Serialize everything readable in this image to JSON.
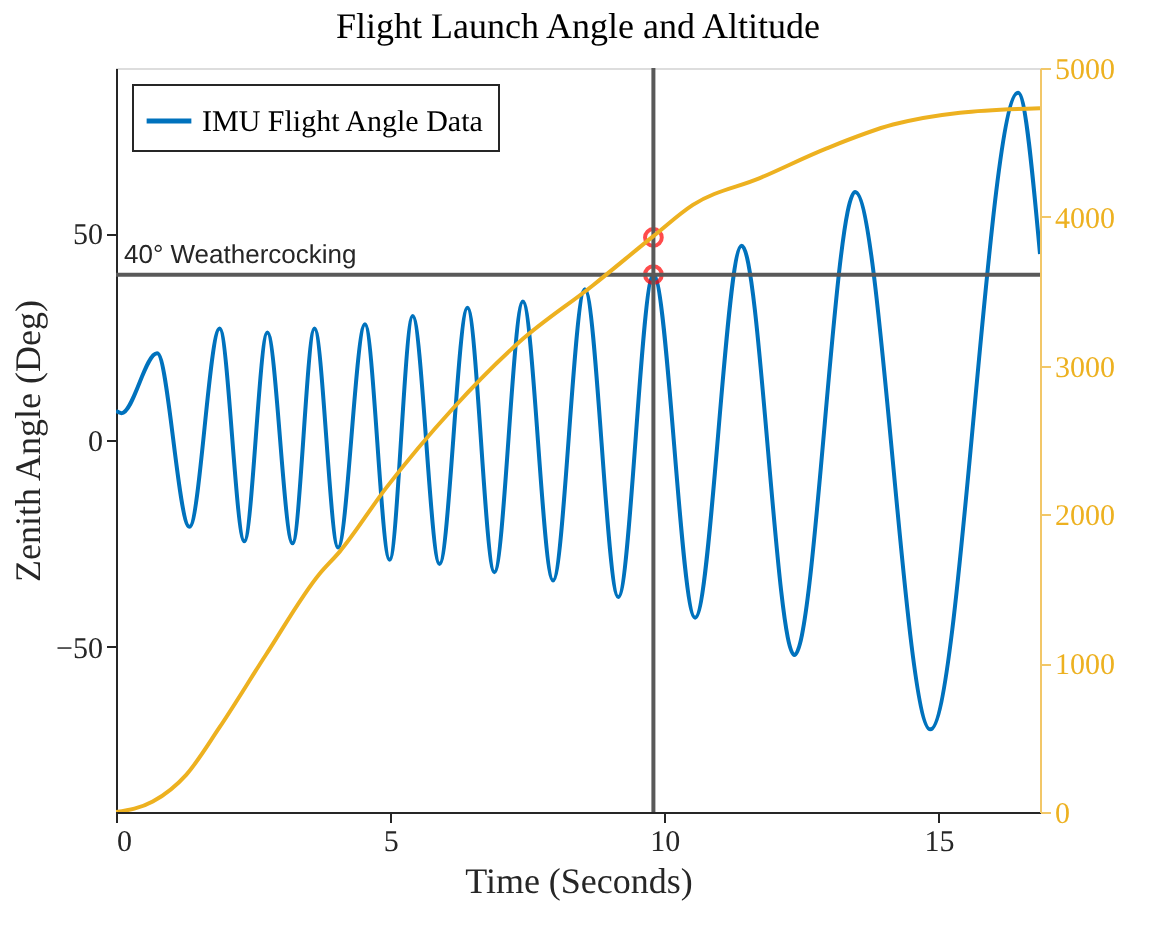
{
  "chart_data": {
    "type": "line",
    "title": "Flight Launch Angle and Altitude",
    "xlabel": "Time (Seconds)",
    "ylabel": "Zenith Angle (Deg)",
    "xlim": [
      0,
      16.85
    ],
    "xticks": [
      0,
      5,
      10,
      15
    ],
    "ylim": [
      -90,
      90
    ],
    "yticks": [
      -50,
      0,
      50
    ],
    "y2lim": [
      0,
      5000
    ],
    "y2ticks": [
      0,
      1000,
      2000,
      3000,
      4000,
      5000
    ],
    "legend": "top left",
    "line_style": "solid",
    "series": [
      {
        "name": "IMU Flight Angle Data",
        "color": "#0072bd",
        "x": [
          0,
          0.1,
          0.75,
          1.34,
          1.89,
          2.34,
          2.76,
          3.22,
          3.62,
          4.05,
          4.54,
          4.99,
          5.41,
          5.9,
          6.41,
          6.9,
          7.42,
          7.97,
          8.55,
          9.16,
          9.8,
          10.56,
          11.41,
          12.37,
          13.48,
          14.85,
          16.45,
          16.85
        ],
        "values": [
          7,
          6.5,
          21,
          -21,
          27,
          -24.5,
          26,
          -25,
          27,
          -26,
          28,
          -29,
          30,
          -30,
          32,
          -32,
          33.5,
          -34,
          36.5,
          -38,
          40,
          -43,
          47,
          -52,
          60,
          -70,
          84,
          45
        ]
      },
      {
        "axis": "y2",
        "color": "#edb120",
        "x": [
          0,
          0.67,
          1.28,
          1.89,
          2.74,
          3.71,
          4.08,
          4.93,
          6.14,
          7.36,
          8.7,
          9.8,
          10.52,
          11.74,
          12.96,
          14.17,
          15.39,
          16.85
        ],
        "values": [
          0,
          70,
          250,
          570,
          1060,
          1600,
          1750,
          2180,
          2710,
          3160,
          3540,
          3870,
          4080,
          4260,
          4460,
          4620,
          4700,
          4730
        ]
      },
      {
        "type": "scatter",
        "marker": "circle",
        "color": "#ff0000",
        "x": [
          9.8,
          9.8
        ],
        "values": [
          40,
          49
        ]
      }
    ],
    "ref_lines": [
      {
        "axis": "x",
        "value": 9.8,
        "color": "#595959"
      },
      {
        "axis": "y",
        "value": 40,
        "label": "40° Weathercocking",
        "color": "#595959"
      }
    ]
  }
}
